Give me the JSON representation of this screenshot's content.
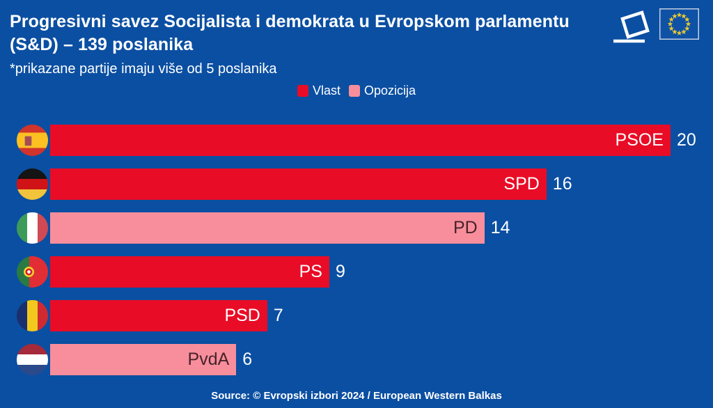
{
  "header": {
    "title": "Progresivni savez Socijalista i demokrata u Evropskom parlamentu (S&D) – 139 poslanika",
    "subtitle": "*prikazane partije imaju više od 5 poslanika"
  },
  "header_icons": [
    {
      "name": "ballot-box-icon"
    },
    {
      "name": "eu-flag-icon"
    }
  ],
  "legend": [
    {
      "key": "vlast",
      "label": "Vlast",
      "color": "#e90c26"
    },
    {
      "key": "opozicija",
      "label": "Opozicija",
      "color": "#f88e9b"
    }
  ],
  "chart_data": {
    "type": "bar",
    "orientation": "horizontal",
    "title": "Progresivni savez Socijalista i demokrata u Evropskom parlamentu (S&D) – 139 poslanika",
    "categories": [
      "PSOE",
      "SPD",
      "PD",
      "PS",
      "PSD",
      "PvdA"
    ],
    "values": [
      20,
      16,
      14,
      9,
      7,
      6
    ],
    "status": [
      "vlast",
      "vlast",
      "opozicija",
      "vlast",
      "vlast",
      "opozicija"
    ],
    "flags": [
      "es",
      "de",
      "it",
      "pt",
      "ro",
      "nl"
    ],
    "flag_names": [
      "spain-flag-icon",
      "germany-flag-icon",
      "italy-flag-icon",
      "portugal-flag-icon",
      "romania-flag-icon",
      "netherlands-flag-icon"
    ],
    "xlim": [
      0,
      20
    ],
    "grid": false,
    "legend_position": "top-center",
    "colors": {
      "vlast": "#e90c26",
      "opozicija": "#f88e9b"
    },
    "label_colors": {
      "vlast": "#ffffff",
      "opozicija": "#46232c"
    },
    "background": "#0b4fa2"
  },
  "footer": {
    "source": "Source: © Evropski izbori 2024 / European Western Balkas"
  }
}
